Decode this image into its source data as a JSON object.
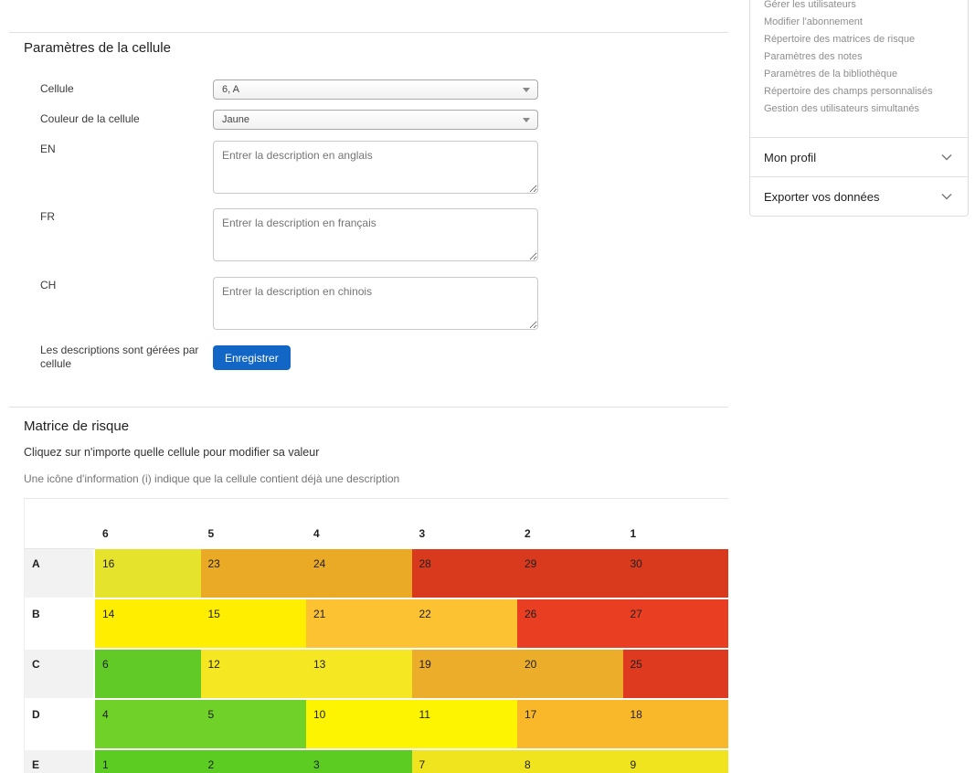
{
  "cell_settings": {
    "title": "Paramètres de la cellule",
    "fields": [
      {
        "label": "Cellule",
        "type": "select",
        "value": "6, A"
      },
      {
        "label": "Couleur de la cellule",
        "type": "select",
        "value": "Jaune"
      },
      {
        "label": "EN",
        "type": "textarea",
        "placeholder": "Entrer la description en anglais"
      },
      {
        "label": "FR",
        "type": "textarea",
        "placeholder": "Entrer la description en français"
      },
      {
        "label": "CH",
        "type": "textarea",
        "placeholder": "Entrer la description en chinois"
      }
    ],
    "note": "Les descriptions sont gérées par cellule",
    "save_label": "Enregistrer",
    "save_color": "#1266c5"
  },
  "risk_matrix": {
    "title": "Matrice de risque",
    "hint1": "Cliquez sur n'importe quelle cellule pour modifier sa valeur",
    "hint2": "Une icône d'information (i) indique que la cellule contient déjà une description",
    "columns": [
      "6",
      "5",
      "4",
      "3",
      "2",
      "1"
    ],
    "rows": [
      {
        "label": "A",
        "cells": [
          {
            "value": "16",
            "color": "#e6e32c"
          },
          {
            "value": "23",
            "color": "#eaaa25"
          },
          {
            "value": "24",
            "color": "#eaaa25"
          },
          {
            "value": "28",
            "color": "#d93a1e"
          },
          {
            "value": "29",
            "color": "#d93a1e"
          },
          {
            "value": "30",
            "color": "#d93a1e"
          }
        ]
      },
      {
        "label": "B",
        "cells": [
          {
            "value": "14",
            "color": "#ffee00"
          },
          {
            "value": "15",
            "color": "#ffee00"
          },
          {
            "value": "21",
            "color": "#fcc232"
          },
          {
            "value": "22",
            "color": "#fcc232"
          },
          {
            "value": "26",
            "color": "#e93e22"
          },
          {
            "value": "27",
            "color": "#e93e22"
          }
        ]
      },
      {
        "label": "C",
        "cells": [
          {
            "value": "6",
            "color": "#62ca26"
          },
          {
            "value": "12",
            "color": "#f5e823"
          },
          {
            "value": "13",
            "color": "#f5e823"
          },
          {
            "value": "19",
            "color": "#ecae2a"
          },
          {
            "value": "20",
            "color": "#ecae2a"
          },
          {
            "value": "25",
            "color": "#de3a20"
          }
        ]
      },
      {
        "label": "D",
        "cells": [
          {
            "value": "4",
            "color": "#70d229"
          },
          {
            "value": "5",
            "color": "#70d229"
          },
          {
            "value": "10",
            "color": "#fdf402"
          },
          {
            "value": "11",
            "color": "#fdf402"
          },
          {
            "value": "17",
            "color": "#f9b829"
          },
          {
            "value": "18",
            "color": "#f9b829"
          }
        ]
      },
      {
        "label": "E",
        "cells": [
          {
            "value": "1",
            "color": "#5ccc23"
          },
          {
            "value": "2",
            "color": "#5ccc23"
          },
          {
            "value": "3",
            "color": "#5ccc23"
          },
          {
            "value": "7",
            "color": "#f0e41e"
          },
          {
            "value": "8",
            "color": "#f0e41e"
          },
          {
            "value": "9",
            "color": "#f0e41e"
          }
        ]
      }
    ]
  },
  "sidebar": {
    "links": [
      "Gérer les utilisateurs",
      "Modifier l'abonnement",
      "Répertoire des matrices de risque",
      "Paramètres des notes",
      "Paramètres de la bibliothèque",
      "Répertoire des champs personnalisés",
      "Gestion des utilisateurs simultanés"
    ],
    "sections": [
      {
        "label": "Mon profil"
      },
      {
        "label": "Exporter vos données"
      }
    ]
  }
}
